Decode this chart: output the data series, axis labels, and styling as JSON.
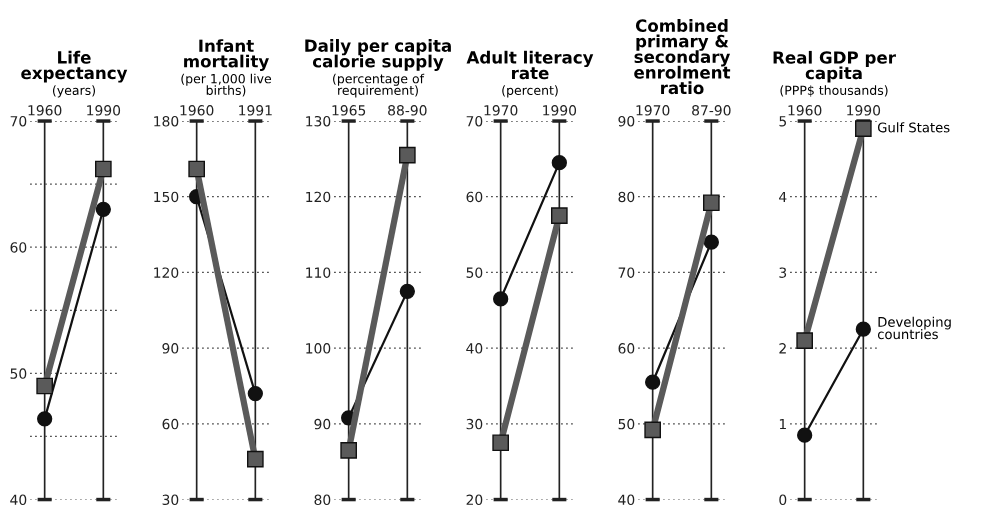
{
  "chart_data": [
    {
      "type": "line",
      "title": "Life\nexpectancy",
      "subtitle": "(years)",
      "categories": [
        "1960",
        "1990"
      ],
      "ylim": [
        40,
        70
      ],
      "yticks": [
        40,
        {
          "value": 45,
          "label": null
        },
        50,
        {
          "value": 55,
          "label": null
        },
        60,
        {
          "value": 65,
          "label": null
        },
        70
      ],
      "grid": true,
      "series": [
        {
          "color": "#5a5a5a",
          "marker": "square",
          "values": [
            49,
            66.2
          ]
        },
        {
          "color": "#111111",
          "marker": "circle",
          "values": [
            46.4,
            63
          ]
        }
      ]
    },
    {
      "type": "line",
      "title": "Infant\nmortality",
      "subtitle": "(per 1,000 live\nbirths)",
      "categories": [
        "1960",
        "1991"
      ],
      "ylim": [
        30,
        180
      ],
      "yticks": [
        30,
        60,
        90,
        120,
        150,
        180
      ],
      "grid": true,
      "series": [
        {
          "color": "#5a5a5a",
          "marker": "square",
          "values": [
            161,
            46
          ]
        },
        {
          "color": "#111111",
          "marker": "circle",
          "values": [
            150,
            72
          ]
        }
      ]
    },
    {
      "type": "line",
      "title": "Daily per capita\ncalorie supply",
      "subtitle": "(percentage of\nrequirement)",
      "categories": [
        "1965",
        "88-90"
      ],
      "ylim": [
        80,
        130
      ],
      "yticks": [
        80,
        90,
        100,
        110,
        120,
        130
      ],
      "grid": true,
      "series": [
        {
          "color": "#5a5a5a",
          "marker": "square",
          "values": [
            86.5,
            125.5
          ]
        },
        {
          "color": "#111111",
          "marker": "circle",
          "values": [
            90.8,
            107.5
          ]
        }
      ]
    },
    {
      "type": "line",
      "title": "Adult literacy\nrate",
      "subtitle": "(percent)",
      "categories": [
        "1970",
        "1990"
      ],
      "ylim": [
        20,
        70
      ],
      "yticks": [
        20,
        30,
        40,
        50,
        60,
        70
      ],
      "grid": true,
      "series": [
        {
          "color": "#5a5a5a",
          "marker": "square",
          "values": [
            27.5,
            57.5
          ]
        },
        {
          "color": "#111111",
          "marker": "circle",
          "values": [
            46.5,
            64.5
          ]
        }
      ]
    },
    {
      "type": "line",
      "title": "Combined\nprimary &\nsecondary\nenrolment\nratio",
      "categories": [
        "1970",
        "87-90"
      ],
      "ylim": [
        40,
        90
      ],
      "yticks": [
        40,
        50,
        60,
        70,
        80,
        90
      ],
      "grid": true,
      "series": [
        {
          "color": "#5a5a5a",
          "marker": "square",
          "values": [
            49.2,
            79.2
          ]
        },
        {
          "color": "#111111",
          "marker": "circle",
          "values": [
            55.5,
            74
          ]
        }
      ]
    },
    {
      "type": "line",
      "title": "Real GDP per\ncapita",
      "subtitle": "(PPP$ thousands)",
      "categories": [
        "1960",
        "1990"
      ],
      "ylim": [
        0,
        5
      ],
      "yticks": [
        0,
        1,
        2,
        3,
        4,
        5
      ],
      "grid": true,
      "series": [
        {
          "name": "Gulf States",
          "color": "#5a5a5a",
          "marker": "square",
          "values": [
            2.1,
            4.9
          ]
        },
        {
          "name": "Developing\ncountries",
          "color": "#111111",
          "marker": "circle",
          "values": [
            0.85,
            2.25
          ]
        }
      ]
    }
  ]
}
